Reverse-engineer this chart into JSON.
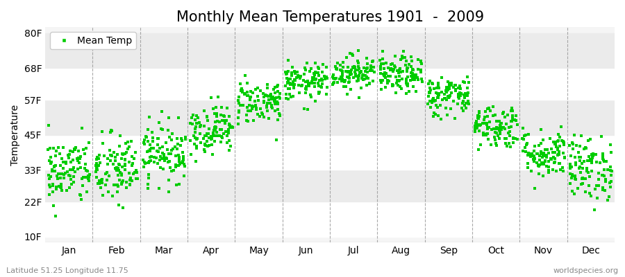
{
  "title": "Monthly Mean Temperatures 1901  -  2009",
  "ylabel": "Temperature",
  "xlabel_months": [
    "Jan",
    "Feb",
    "Mar",
    "Apr",
    "May",
    "Jun",
    "Jul",
    "Aug",
    "Sep",
    "Oct",
    "Nov",
    "Dec"
  ],
  "ytick_labels": [
    "10F",
    "22F",
    "33F",
    "45F",
    "57F",
    "68F",
    "80F"
  ],
  "ytick_values": [
    10,
    22,
    33,
    45,
    57,
    68,
    80
  ],
  "ylim": [
    8,
    82
  ],
  "dot_color": "#00CC00",
  "dot_size": 5,
  "background_color": "#ffffff",
  "plot_bg_color": "#f5f5f5",
  "grid_color": "#888888",
  "title_fontsize": 15,
  "axis_fontsize": 10,
  "tick_fontsize": 10,
  "legend_label": "Mean Temp",
  "subtitle_left": "Latitude 51.25 Longitude 11.75",
  "subtitle_right": "worldspecies.org",
  "n_years": 109,
  "monthly_mean_F": [
    32.5,
    33.0,
    39.0,
    47.0,
    56.5,
    63.0,
    66.5,
    65.5,
    58.5,
    48.0,
    38.5,
    33.5
  ],
  "monthly_std_F": [
    5.8,
    6.2,
    5.0,
    4.2,
    3.8,
    3.2,
    3.0,
    3.2,
    3.5,
    3.8,
    4.2,
    5.5
  ],
  "seed": 42,
  "stripe_colors": [
    "#ffffff",
    "#ebebeb"
  ]
}
